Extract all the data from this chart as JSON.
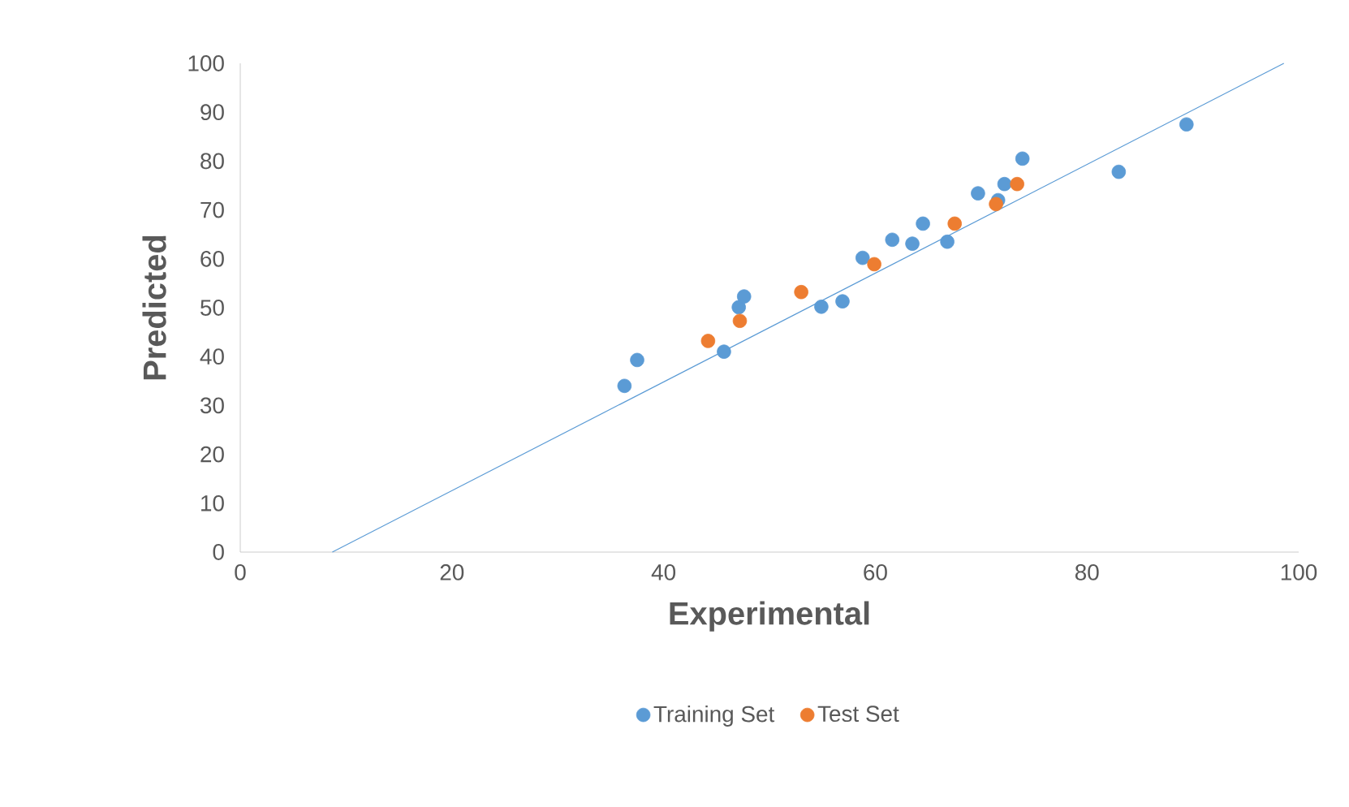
{
  "chart_data": {
    "type": "scatter",
    "xlabel": "Experimental",
    "ylabel": "Predicted",
    "xlim": [
      0,
      100
    ],
    "ylim": [
      0,
      100
    ],
    "xticks": [
      0,
      20,
      40,
      60,
      80,
      100
    ],
    "yticks": [
      0,
      10,
      20,
      30,
      40,
      50,
      60,
      70,
      80,
      90,
      100
    ],
    "legend": "bottom",
    "series": [
      {
        "name": "Training Set",
        "marker": "circle",
        "color": "#5b9bd5",
        "x": [
          36.3,
          37.5,
          45.7,
          47.1,
          47.6,
          54.9,
          56.9,
          58.8,
          61.6,
          63.5,
          64.5,
          66.8,
          69.7,
          71.6,
          72.2,
          73.9,
          83.0,
          89.4
        ],
        "values": [
          34.0,
          39.3,
          41.0,
          50.1,
          52.3,
          50.2,
          51.3,
          60.2,
          63.9,
          63.1,
          67.2,
          63.5,
          73.4,
          72.0,
          75.3,
          80.5,
          77.8,
          87.5
        ]
      },
      {
        "name": "Test Set",
        "marker": "circle",
        "color": "#ed7d31",
        "x": [
          44.2,
          47.2,
          53.0,
          59.9,
          67.5,
          71.4,
          73.4
        ],
        "values": [
          43.2,
          47.3,
          53.2,
          58.9,
          67.2,
          71.2,
          75.3
        ]
      },
      {
        "type": "line",
        "marker": "none",
        "color": "#5b9bd5",
        "x": [
          8.7,
          98.6
        ],
        "values": [
          0,
          100
        ]
      }
    ]
  }
}
